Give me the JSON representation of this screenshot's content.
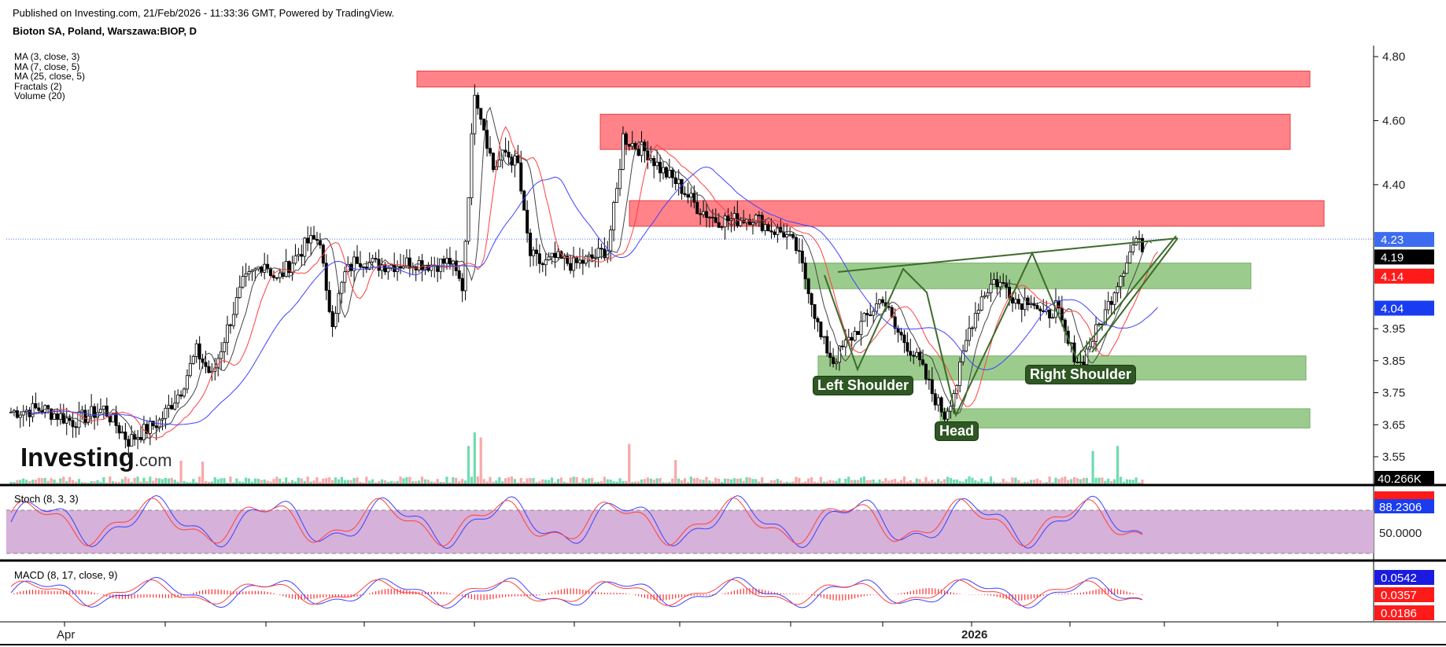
{
  "header": {
    "published": "Published on Investing.com, 21/Feb/2026 - 11:33:36 GMT, Powered by TradingView.",
    "symbol": "Bioton SA, Poland, Warszawa:BIOP, D"
  },
  "watermark": {
    "brand": "Investing",
    "suffix": ".com"
  },
  "indicators": [
    "MA (3, close, 3)",
    "MA (7, close, 5)",
    "MA (25, close, 5)",
    "Fractals (2)",
    "Volume (20)"
  ],
  "annotations": {
    "left_shoulder": "Left Shoulder",
    "head": "Head",
    "right_shoulder": "Right Shoulder"
  },
  "panels": {
    "stoch": "Stoch (8, 3, 3)",
    "macd": "MACD (8, 17, close, 9)"
  },
  "colors": {
    "up": "#1a1a1a",
    "down": "#000000",
    "resistance": "#ff6e75",
    "support": "#8bc47a",
    "pattern": "#3d6b2c",
    "ma3": "#444444",
    "ma7": "#ff4040",
    "ma25": "#4040ff",
    "vol_up": "#6fdcb0",
    "vol_down": "#f7a9a9",
    "stoch_band": "#d6b1d9",
    "price_line": "#4a6cff"
  },
  "chart_data": {
    "type": "candlestick",
    "x_labels": [
      "Apr",
      "2026"
    ],
    "y_ticks": [
      "4.80",
      "4.60",
      "4.40",
      "3.95",
      "3.85",
      "3.75",
      "3.65",
      "3.55"
    ],
    "price_badges": [
      {
        "value": "4.23",
        "bg": "#3d6cf0",
        "fg": "#ffffff"
      },
      {
        "value": "4.19",
        "bg": "#000000",
        "fg": "#ffffff"
      },
      {
        "value": "4.14",
        "bg": "#ff1a1a",
        "fg": "#ffffff"
      },
      {
        "value": "4.04",
        "bg": "#1a3cf0",
        "fg": "#ffffff"
      }
    ],
    "volume_badge": "40.266K",
    "stoch_badges": [
      {
        "value": "88.2306",
        "bg": "#1a3cf0"
      },
      {
        "value": "50.0000",
        "bg": "none"
      }
    ],
    "macd_badges": [
      {
        "value": "0.0542",
        "bg": "#1a1ae0"
      },
      {
        "value": "0.0357",
        "bg": "#ff1a1a"
      },
      {
        "value": "0.0186",
        "bg": "#ff1a1a"
      }
    ],
    "ohlc_keys": [
      [
        0,
        3.69
      ],
      [
        10,
        3.7
      ],
      [
        20,
        3.66
      ],
      [
        30,
        3.7
      ],
      [
        38,
        3.6
      ],
      [
        48,
        3.66
      ],
      [
        55,
        3.76
      ],
      [
        60,
        3.88
      ],
      [
        65,
        3.8
      ],
      [
        70,
        3.95
      ],
      [
        75,
        4.09
      ],
      [
        82,
        4.16
      ],
      [
        86,
        4.1
      ],
      [
        90,
        4.15
      ],
      [
        96,
        4.22
      ],
      [
        100,
        4.23
      ],
      [
        102,
        4.05
      ],
      [
        104,
        3.98
      ],
      [
        108,
        4.12
      ],
      [
        112,
        4.17
      ],
      [
        118,
        4.15
      ],
      [
        124,
        4.15
      ],
      [
        130,
        4.16
      ],
      [
        136,
        4.15
      ],
      [
        142,
        4.16
      ],
      [
        146,
        4.08
      ],
      [
        148,
        4.38
      ],
      [
        150,
        4.7
      ],
      [
        153,
        4.58
      ],
      [
        156,
        4.45
      ],
      [
        160,
        4.5
      ],
      [
        164,
        4.46
      ],
      [
        166,
        4.3
      ],
      [
        168,
        4.18
      ],
      [
        172,
        4.15
      ],
      [
        176,
        4.17
      ],
      [
        182,
        4.15
      ],
      [
        188,
        4.17
      ],
      [
        193,
        4.2
      ],
      [
        196,
        4.38
      ],
      [
        198,
        4.55
      ],
      [
        202,
        4.52
      ],
      [
        206,
        4.5
      ],
      [
        210,
        4.45
      ],
      [
        216,
        4.4
      ],
      [
        222,
        4.33
      ],
      [
        228,
        4.29
      ],
      [
        234,
        4.29
      ],
      [
        240,
        4.3
      ],
      [
        246,
        4.26
      ],
      [
        250,
        4.25
      ],
      [
        254,
        4.2
      ],
      [
        258,
        4.08
      ],
      [
        262,
        3.92
      ],
      [
        266,
        3.85
      ],
      [
        270,
        3.9
      ],
      [
        274,
        3.95
      ],
      [
        278,
        4.0
      ],
      [
        282,
        4.05
      ],
      [
        286,
        3.95
      ],
      [
        290,
        3.9
      ],
      [
        294,
        3.84
      ],
      [
        298,
        3.75
      ],
      [
        302,
        3.68
      ],
      [
        306,
        3.78
      ],
      [
        310,
        3.95
      ],
      [
        314,
        4.05
      ],
      [
        318,
        4.1
      ],
      [
        322,
        4.08
      ],
      [
        326,
        4.03
      ],
      [
        330,
        4.05
      ],
      [
        334,
        3.98
      ],
      [
        338,
        4.02
      ],
      [
        342,
        3.9
      ],
      [
        346,
        3.84
      ],
      [
        350,
        3.92
      ],
      [
        354,
        4.0
      ],
      [
        358,
        4.1
      ],
      [
        362,
        4.19
      ],
      [
        364,
        4.23
      ],
      [
        366,
        4.19
      ]
    ],
    "count": 367
  }
}
